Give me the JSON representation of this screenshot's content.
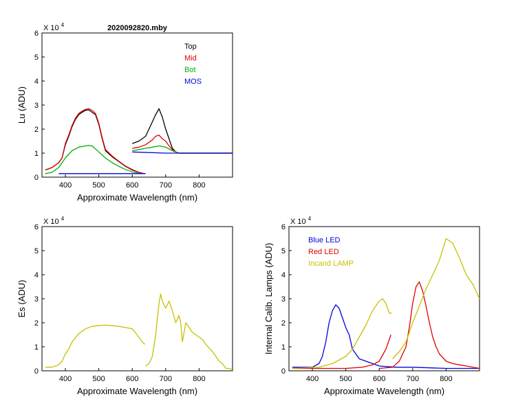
{
  "file_title": "2020092820.mby",
  "chart_data": [
    {
      "type": "line",
      "title": "2020092820.mby",
      "xlabel": "Approximate Wavelength (nm)",
      "ylabel": "Lu (ADU)",
      "y_exponent_label": "X 10",
      "y_exponent": "4",
      "xlim": [
        330,
        900
      ],
      "ylim": [
        0,
        6
      ],
      "xticks": [
        400,
        500,
        600,
        700,
        800
      ],
      "yticks": [
        0,
        1,
        2,
        3,
        4,
        5,
        6
      ],
      "legend_position": "top-right",
      "series": [
        {
          "name": "Top",
          "color": "#000000",
          "segments": [
            {
              "x": [
                340,
                360,
                380,
                390,
                400,
                410,
                420,
                430,
                440,
                450,
                460,
                470,
                480,
                490,
                500,
                510,
                520,
                540,
                560,
                580,
                600,
                620,
                635
              ],
              "y": [
                0.3,
                0.4,
                0.6,
                0.8,
                1.35,
                1.7,
                2.1,
                2.4,
                2.6,
                2.7,
                2.78,
                2.8,
                2.7,
                2.6,
                2.2,
                1.6,
                1.1,
                0.85,
                0.65,
                0.45,
                0.3,
                0.2,
                0.15
              ]
            },
            {
              "x": [
                600,
                620,
                640,
                650,
                660,
                670,
                680,
                690,
                700,
                710,
                720,
                730,
                740,
                760,
                800,
                850,
                900
              ],
              "y": [
                1.4,
                1.5,
                1.7,
                2.0,
                2.3,
                2.6,
                2.85,
                2.5,
                2.0,
                1.6,
                1.2,
                1.05,
                1.0,
                1.0,
                1.0,
                1.0,
                1.0
              ]
            }
          ]
        },
        {
          "name": "Mid",
          "color": "#e00000",
          "segments": [
            {
              "x": [
                340,
                360,
                380,
                390,
                400,
                410,
                420,
                430,
                440,
                450,
                460,
                470,
                480,
                490,
                500,
                510,
                520,
                540,
                560,
                580,
                600,
                620,
                635
              ],
              "y": [
                0.3,
                0.4,
                0.6,
                0.8,
                1.4,
                1.75,
                2.15,
                2.45,
                2.65,
                2.75,
                2.82,
                2.85,
                2.78,
                2.65,
                2.25,
                1.65,
                1.15,
                0.88,
                0.66,
                0.46,
                0.32,
                0.2,
                0.15
              ]
            },
            {
              "x": [
                600,
                620,
                640,
                650,
                660,
                670,
                680,
                690,
                700,
                710,
                720,
                730,
                740,
                760,
                800,
                850,
                900
              ],
              "y": [
                1.2,
                1.25,
                1.35,
                1.45,
                1.55,
                1.7,
                1.75,
                1.6,
                1.5,
                1.3,
                1.15,
                1.05,
                1.0,
                1.0,
                1.0,
                1.0,
                1.0
              ]
            }
          ]
        },
        {
          "name": "Bot",
          "color": "#00b000",
          "segments": [
            {
              "x": [
                340,
                360,
                380,
                400,
                420,
                440,
                460,
                470,
                480,
                500,
                520,
                540,
                560,
                580,
                600,
                620,
                635
              ],
              "y": [
                0.15,
                0.2,
                0.4,
                0.8,
                1.1,
                1.25,
                1.3,
                1.32,
                1.3,
                1.05,
                0.8,
                0.6,
                0.45,
                0.32,
                0.22,
                0.16,
                0.15
              ]
            },
            {
              "x": [
                600,
                620,
                640,
                660,
                680,
                700,
                720,
                740,
                760,
                800,
                850,
                900
              ],
              "y": [
                1.1,
                1.15,
                1.2,
                1.25,
                1.3,
                1.25,
                1.1,
                1.0,
                1.0,
                1.0,
                1.0,
                1.0
              ]
            }
          ]
        },
        {
          "name": "MOS",
          "color": "#0000e0",
          "segments": [
            {
              "x": [
                380,
                500,
                600,
                640
              ],
              "y": [
                0.15,
                0.15,
                0.15,
                0.15
              ]
            },
            {
              "x": [
                600,
                700,
                800,
                900
              ],
              "y": [
                1.05,
                1.0,
                1.0,
                1.0
              ]
            }
          ]
        }
      ]
    },
    {
      "type": "line",
      "title": "",
      "xlabel": "Approximate Wavelength (nm)",
      "ylabel": "Es  (ADU)",
      "y_exponent_label": "X 10",
      "y_exponent": "4",
      "xlim": [
        330,
        900
      ],
      "ylim": [
        0,
        6
      ],
      "xticks": [
        400,
        500,
        600,
        700,
        800
      ],
      "yticks": [
        0,
        1,
        2,
        3,
        4,
        5,
        6
      ],
      "series": [
        {
          "name": "Es",
          "color": "#c8c000",
          "segments": [
            {
              "x": [
                340,
                360,
                380,
                390,
                400,
                410,
                420,
                440,
                460,
                480,
                500,
                520,
                540,
                560,
                580,
                600,
                620,
                630,
                638
              ],
              "y": [
                0.15,
                0.15,
                0.25,
                0.4,
                0.7,
                0.9,
                1.2,
                1.55,
                1.75,
                1.85,
                1.88,
                1.9,
                1.88,
                1.85,
                1.8,
                1.75,
                1.4,
                1.2,
                1.1
              ]
            },
            {
              "x": [
                640,
                650,
                660,
                670,
                680,
                685,
                690,
                700,
                710,
                720,
                730,
                740,
                745,
                750,
                755,
                760,
                770,
                780,
                790,
                800,
                810,
                820,
                830,
                840,
                850,
                860,
                870,
                880,
                890,
                900
              ],
              "y": [
                0.2,
                0.3,
                0.6,
                1.5,
                2.8,
                3.2,
                2.9,
                2.6,
                2.9,
                2.5,
                2.0,
                2.3,
                2.0,
                1.2,
                1.6,
                2.0,
                1.8,
                1.6,
                1.5,
                1.4,
                1.3,
                1.1,
                0.95,
                0.8,
                0.6,
                0.4,
                0.3,
                0.1,
                0.1,
                0.05
              ]
            }
          ]
        }
      ]
    },
    {
      "type": "line",
      "title": "",
      "xlabel": "Approximate Wavelength (nm)",
      "ylabel": "Internal Calib. Lamps  (ADU)",
      "y_exponent_label": "X 10",
      "y_exponent": "4",
      "xlim": [
        330,
        900
      ],
      "ylim": [
        0,
        6
      ],
      "xticks": [
        400,
        500,
        600,
        700,
        800
      ],
      "yticks": [
        0,
        1,
        2,
        3,
        4,
        5,
        6
      ],
      "legend_position": "top-left",
      "series": [
        {
          "name": "Blue LED",
          "color": "#0000e0",
          "segments": [
            {
              "x": [
                340,
                400,
                420,
                430,
                440,
                450,
                460,
                470,
                480,
                490,
                500,
                510,
                520,
                530,
                540,
                560,
                580,
                600,
                650,
                700,
                800,
                900
              ],
              "y": [
                0.15,
                0.15,
                0.3,
                0.6,
                1.2,
                2.0,
                2.5,
                2.75,
                2.6,
                2.2,
                1.8,
                1.5,
                0.9,
                0.7,
                0.5,
                0.4,
                0.3,
                0.2,
                0.15,
                0.15,
                0.1,
                0.1
              ]
            }
          ]
        },
        {
          "name": "Red LED",
          "color": "#e00000",
          "segments": [
            {
              "x": [
                340,
                400,
                500,
                550,
                580,
                600,
                620,
                635
              ],
              "y": [
                0.1,
                0.1,
                0.1,
                0.15,
                0.25,
                0.4,
                0.9,
                1.5
              ]
            },
            {
              "x": [
                600,
                640,
                660,
                680,
                690,
                700,
                710,
                720,
                730,
                740,
                750,
                760,
                770,
                780,
                800,
                820,
                840,
                860,
                900
              ],
              "y": [
                0.1,
                0.15,
                0.4,
                1.0,
                1.8,
                2.8,
                3.5,
                3.7,
                3.3,
                2.7,
                2.0,
                1.4,
                1.0,
                0.7,
                0.4,
                0.3,
                0.25,
                0.2,
                0.1
              ]
            }
          ]
        },
        {
          "name": "Incand LAMP",
          "color": "#c8c000",
          "segments": [
            {
              "x": [
                340,
                420,
                460,
                500,
                520,
                540,
                560,
                580,
                600,
                610,
                620,
                630,
                638
              ],
              "y": [
                0.1,
                0.15,
                0.3,
                0.6,
                0.9,
                1.4,
                1.9,
                2.5,
                2.9,
                3.0,
                2.8,
                2.4,
                2.4
              ]
            },
            {
              "x": [
                640,
                660,
                680,
                700,
                720,
                740,
                760,
                780,
                800,
                810,
                820,
                830,
                840,
                860,
                880,
                900
              ],
              "y": [
                0.5,
                0.8,
                1.2,
                2.0,
                2.7,
                3.4,
                4.0,
                4.6,
                5.5,
                5.4,
                5.3,
                5.0,
                4.7,
                4.0,
                3.6,
                3.0
              ]
            }
          ]
        }
      ]
    }
  ]
}
